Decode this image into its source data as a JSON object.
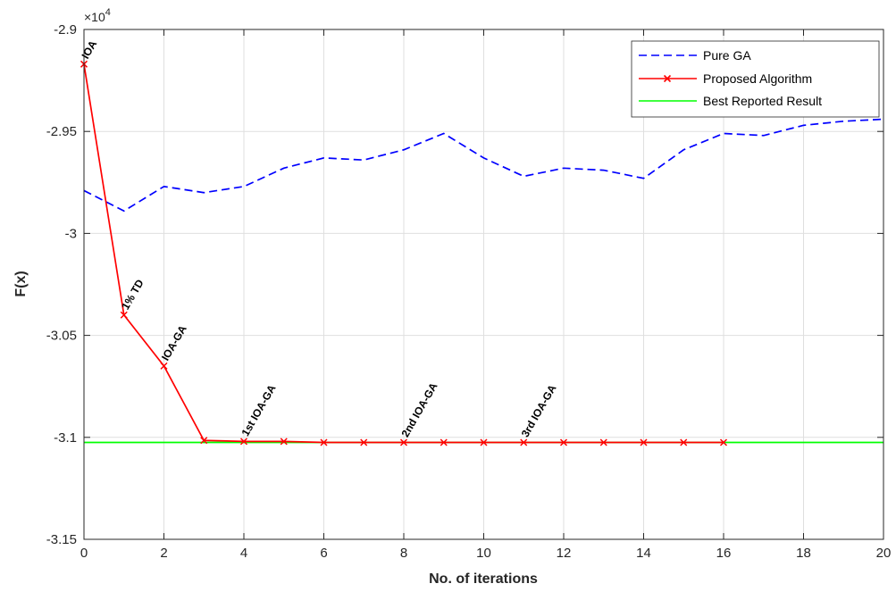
{
  "chart_data": {
    "type": "line",
    "xlabel": "No. of iterations",
    "ylabel": "F(x)",
    "exponent_label": "×10",
    "exponent_power": "4",
    "xlim": [
      0,
      20
    ],
    "ylim": [
      -3.15,
      -2.9
    ],
    "xticks": [
      0,
      2,
      4,
      6,
      8,
      10,
      12,
      14,
      16,
      18,
      20
    ],
    "yticks": [
      -2.9,
      -2.95,
      -3,
      -3.05,
      -3.1,
      -3.15
    ],
    "xtick_labels": [
      "0",
      "2",
      "4",
      "6",
      "8",
      "10",
      "12",
      "14",
      "16",
      "18",
      "20"
    ],
    "ytick_labels": [
      "-2.9",
      "-2.95",
      "-3",
      "-3.05",
      "-3.1",
      "-3.15"
    ],
    "grid": true,
    "legend_position": "top-right",
    "series": [
      {
        "name": "Pure GA",
        "color": "#0000ff",
        "style": "dashed",
        "marker": "none",
        "x": [
          0,
          1,
          2,
          3,
          4,
          5,
          6,
          7,
          8,
          9,
          10,
          11,
          12,
          13,
          14,
          15,
          16,
          17,
          18,
          19,
          20
        ],
        "y": [
          -2.979,
          -2.989,
          -2.977,
          -2.98,
          -2.977,
          -2.968,
          -2.963,
          -2.964,
          -2.959,
          -2.951,
          -2.963,
          -2.972,
          -2.968,
          -2.969,
          -2.973,
          -2.959,
          -2.951,
          -2.952,
          -2.947,
          -2.945,
          -2.944
        ]
      },
      {
        "name": "Proposed Algorithm",
        "color": "#ff0000",
        "style": "solid",
        "marker": "x",
        "x": [
          0,
          1,
          2,
          3,
          4,
          5,
          6,
          7,
          8,
          9,
          10,
          11,
          12,
          13,
          14,
          15,
          16
        ],
        "y": [
          -2.917,
          -3.04,
          -3.065,
          -3.1015,
          -3.102,
          -3.102,
          -3.1025,
          -3.1025,
          -3.1025,
          -3.1025,
          -3.1025,
          -3.1025,
          -3.1025,
          -3.1025,
          -3.1025,
          -3.1025,
          -3.1025
        ]
      },
      {
        "name": "Best Reported Result",
        "color": "#00ff00",
        "style": "solid",
        "marker": "none",
        "x": [
          0,
          20
        ],
        "y": [
          -3.1025,
          -3.1025
        ]
      }
    ],
    "annotations": [
      {
        "text": "IOA",
        "x": 0,
        "y": -2.917,
        "rotate": -60
      },
      {
        "text": "1% TD",
        "x": 1,
        "y": -3.04,
        "rotate": -60
      },
      {
        "text": "IOA-GA",
        "x": 2,
        "y": -3.065,
        "rotate": -60
      },
      {
        "text": "1st IOA-GA",
        "x": 4,
        "y": -3.102,
        "rotate": -60
      },
      {
        "text": "2nd IOA-GA",
        "x": 8,
        "y": -3.1025,
        "rotate": -60
      },
      {
        "text": "3rd IOA-GA",
        "x": 11,
        "y": -3.1025,
        "rotate": -60
      }
    ]
  }
}
